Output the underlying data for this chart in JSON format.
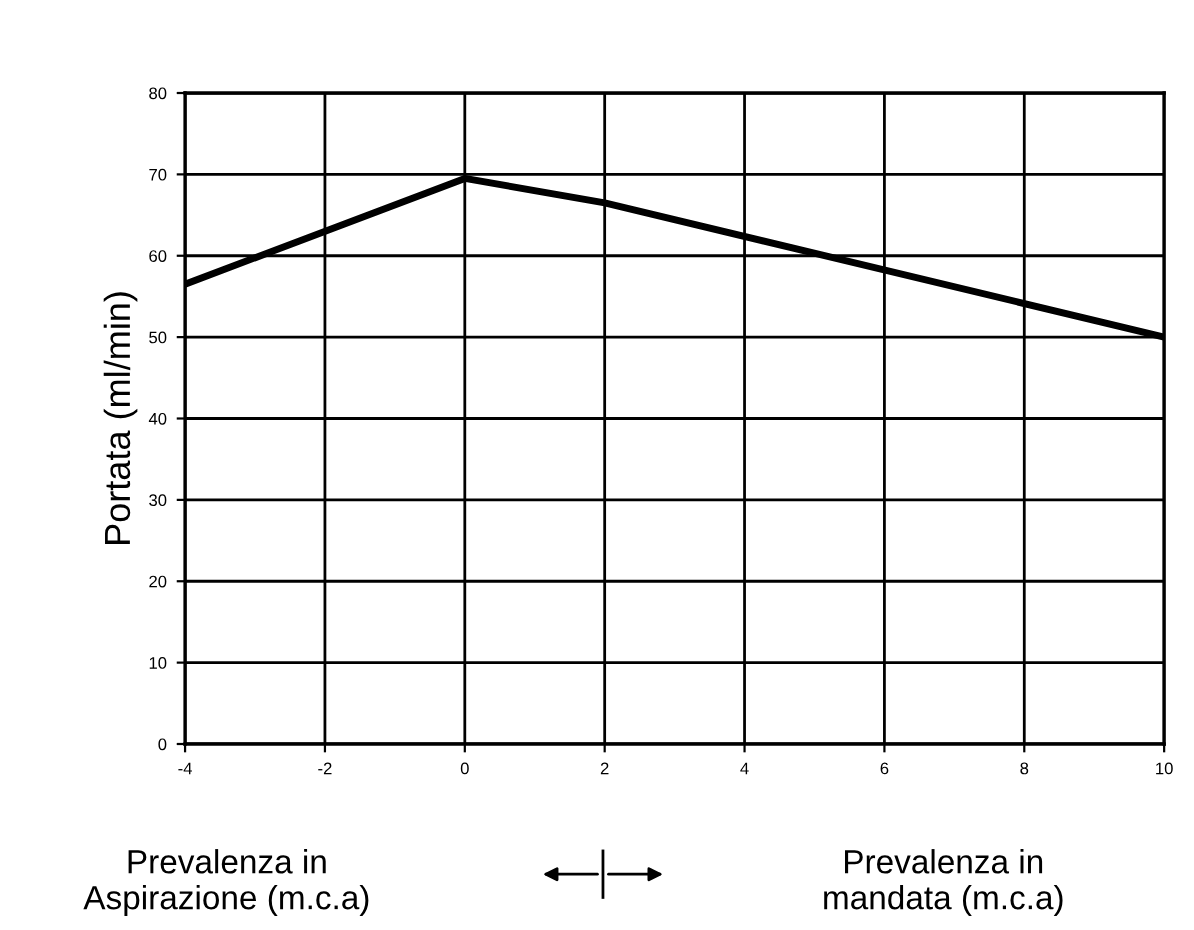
{
  "chart_data": {
    "type": "line",
    "x": [
      -4,
      0,
      2,
      10
    ],
    "values": [
      56.5,
      69.5,
      66.5,
      50
    ],
    "color": "#000000",
    "ylabel": "Portata (ml/min)",
    "xlim": [
      -4,
      10
    ],
    "xticks": [
      -4,
      -2,
      0,
      2,
      4,
      6,
      8,
      10
    ],
    "ylim": [
      0,
      80
    ],
    "yticks": [
      0,
      10,
      20,
      30,
      40,
      50,
      60,
      70,
      80
    ],
    "grid": true,
    "annotations": [
      "Prevalenza in\nAspirazione (m.c.a)",
      "Prevalenza in\nmandata (m.c.a)"
    ]
  }
}
